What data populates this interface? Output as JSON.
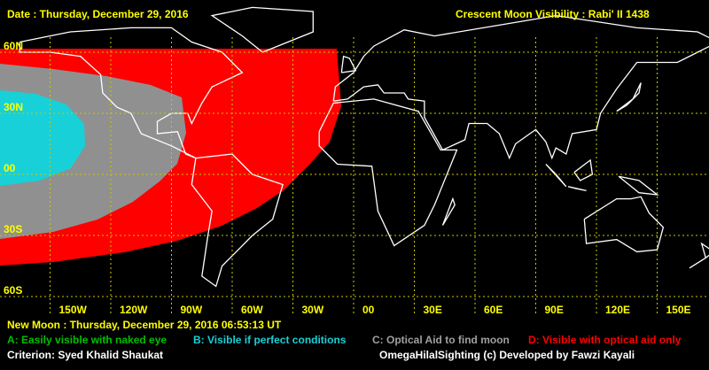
{
  "header": {
    "date": "Date : Thursday, December 29, 2016",
    "title": "Crescent Moon Visibility : Rabi' II  1438"
  },
  "grid": {
    "latitude_labels": [
      "60N",
      "30N",
      "00",
      "30S",
      "60S"
    ],
    "longitude_labels": [
      "150W",
      "120W",
      "90W",
      "60W",
      "30W",
      "00",
      "30E",
      "60E",
      "90E",
      "120E",
      "150E"
    ]
  },
  "footer": {
    "new_moon": "New Moon : Thursday, December 29, 2016  06:53:13  UT",
    "legend": [
      "A: Easily visible with naked eye",
      "B: Visible if perfect conditions",
      "C: Optical Aid to find moon",
      "D: Visible with optical aid only"
    ],
    "criterion": "Criterion: Syed Khalid Shaukat",
    "credit": "OmegaHilalSighting  (c)  Developed by Fawzi Kayali"
  }
}
